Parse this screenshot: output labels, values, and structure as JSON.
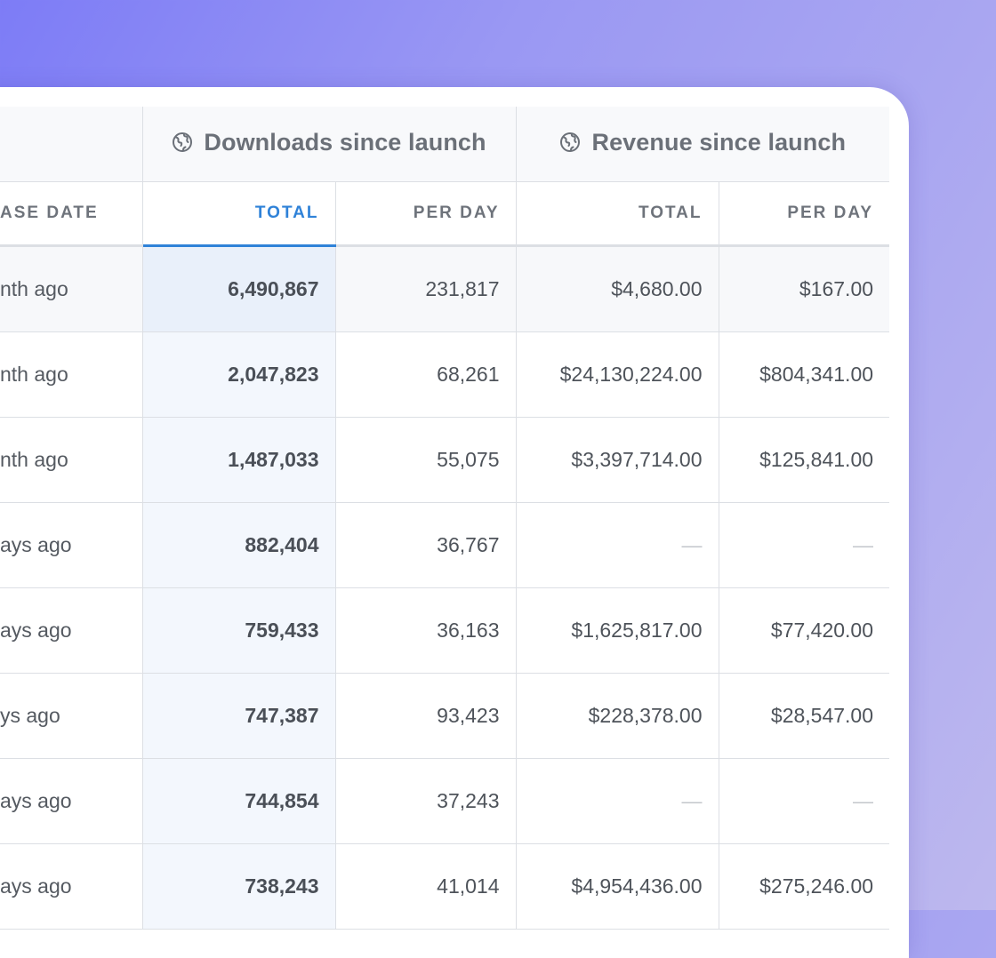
{
  "groups": {
    "downloads": {
      "label": "Downloads since launch",
      "icon": "globe-icon"
    },
    "revenue": {
      "label": "Revenue since launch",
      "icon": "globe-icon"
    }
  },
  "columns": {
    "release_date": "ASE DATE",
    "dl_total": "TOTAL",
    "dl_per_day": "PER DAY",
    "rev_total": "TOTAL",
    "rev_per_day": "PER DAY"
  },
  "rows": [
    {
      "date": "nth ago",
      "dl_total": "6,490,867",
      "dl_per_day": "231,817",
      "rev_total": "$4,680.00",
      "rev_per_day": "$167.00"
    },
    {
      "date": "nth ago",
      "dl_total": "2,047,823",
      "dl_per_day": "68,261",
      "rev_total": "$24,130,224.00",
      "rev_per_day": "$804,341.00"
    },
    {
      "date": "nth ago",
      "dl_total": "1,487,033",
      "dl_per_day": "55,075",
      "rev_total": "$3,397,714.00",
      "rev_per_day": "$125,841.00"
    },
    {
      "date": "ays ago",
      "dl_total": "882,404",
      "dl_per_day": "36,767",
      "rev_total": "—",
      "rev_per_day": "—"
    },
    {
      "date": "ays ago",
      "dl_total": "759,433",
      "dl_per_day": "36,163",
      "rev_total": "$1,625,817.00",
      "rev_per_day": "$77,420.00"
    },
    {
      "date": "ys ago",
      "dl_total": "747,387",
      "dl_per_day": "93,423",
      "rev_total": "$228,378.00",
      "rev_per_day": "$28,547.00"
    },
    {
      "date": "ays ago",
      "dl_total": "744,854",
      "dl_per_day": "37,243",
      "rev_total": "—",
      "rev_per_day": "—"
    },
    {
      "date": "ays ago",
      "dl_total": "738,243",
      "dl_per_day": "41,014",
      "rev_total": "$4,954,436.00",
      "rev_per_day": "$275,246.00"
    }
  ]
}
